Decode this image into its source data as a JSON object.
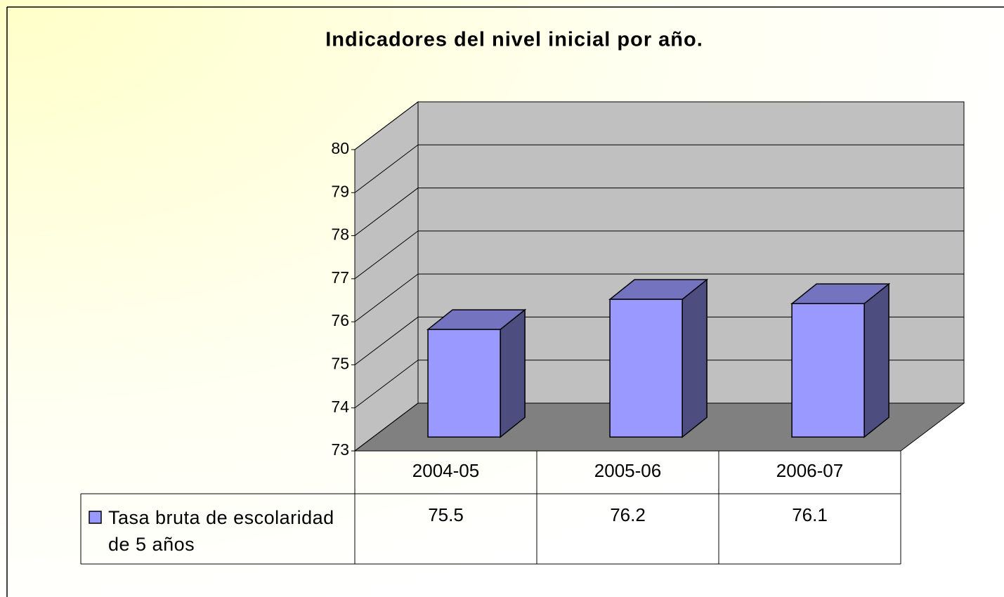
{
  "chart_data": {
    "type": "bar3d",
    "title": "Indicadores del nivel inicial por año.",
    "categories": [
      "2004-05",
      "2005-06",
      "2006-07"
    ],
    "series": [
      {
        "name": "Tasa bruta de escolaridad de 5 años",
        "color": "#9999ff",
        "values": [
          75.5,
          76.2,
          76.1
        ]
      }
    ],
    "ylim": [
      73,
      80
    ],
    "yticks": [
      73,
      74,
      75,
      76,
      77,
      78,
      79,
      80
    ],
    "grid": true,
    "data_table": true
  }
}
